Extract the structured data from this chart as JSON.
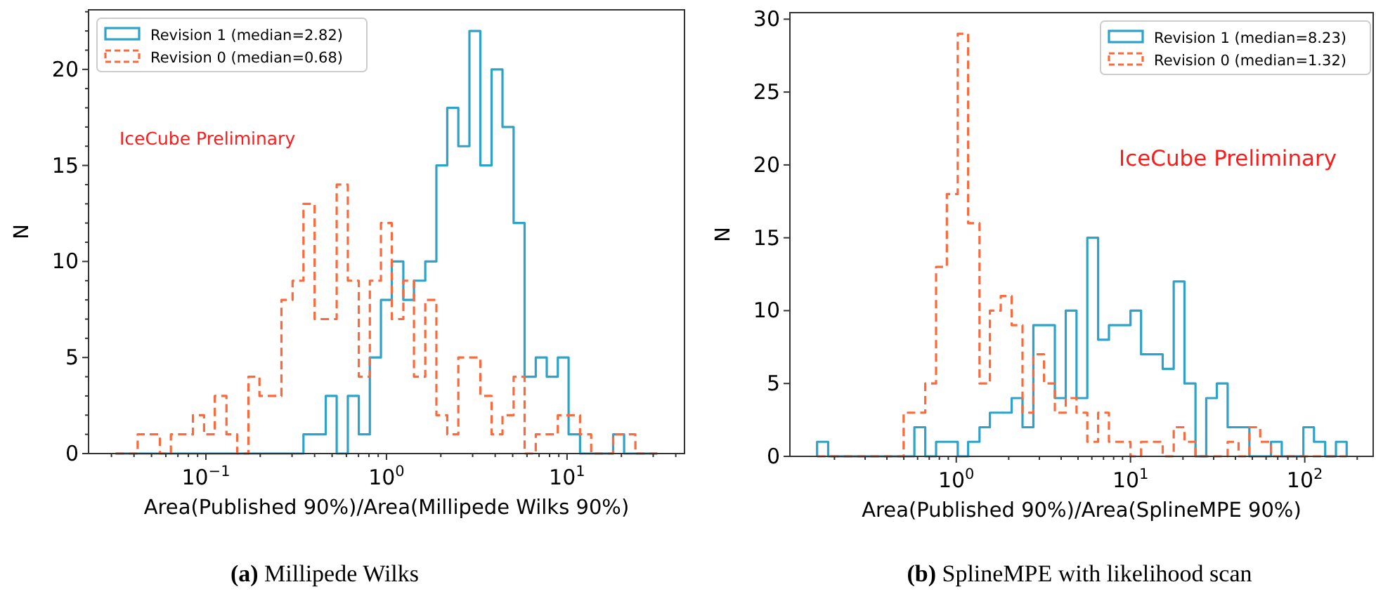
{
  "chart_data": [
    {
      "type": "histogram",
      "title": "(a) Millipede Wilks",
      "xlabel": "Area(Published 90%)/Area(Millipede Wilks 90%)",
      "ylabel": "N",
      "annotations": [
        "IceCube Preliminary"
      ],
      "log": "x",
      "legend": "top left",
      "grid": false,
      "bins": [
        0.0316,
        0.0364,
        0.0419,
        0.0483,
        0.0556,
        0.064,
        0.0737,
        0.0848,
        0.0977,
        0.112,
        0.13,
        0.149,
        0.172,
        0.198,
        0.228,
        0.262,
        0.302,
        0.347,
        0.4,
        0.461,
        0.53,
        0.611,
        0.703,
        0.809,
        0.932,
        1.07,
        1.24,
        1.42,
        1.64,
        1.89,
        2.17,
        2.5,
        2.88,
        3.31,
        3.82,
        4.39,
        5.06,
        5.82,
        6.71,
        7.72,
        8.89,
        10.2,
        11.8,
        13.6,
        15.6,
        18,
        20.7,
        23.9,
        27.5,
        31.6
      ],
      "series": [
        {
          "name": "Revision 1 (median=2.82)",
          "color": "#2ea2c8",
          "line_style": "solid",
          "values": [
            0,
            0,
            0,
            0,
            0,
            0,
            0,
            0,
            0,
            0,
            0,
            0,
            0,
            0,
            0,
            0,
            0,
            1,
            1,
            3,
            0,
            3,
            1,
            5,
            8,
            10,
            8,
            9,
            10,
            15,
            18,
            16,
            22,
            15,
            20,
            17,
            12,
            4,
            5,
            4,
            5,
            1,
            0,
            0,
            0,
            1,
            0,
            0,
            0
          ]
        },
        {
          "name": "Revision 0 (median=0.68)",
          "color": "#fa6a3c",
          "line_style": "dashed",
          "values": [
            0,
            0,
            1,
            1,
            0,
            1,
            1,
            2,
            1,
            3,
            1,
            0,
            4,
            3,
            3,
            8,
            9,
            13,
            7,
            7,
            14,
            9,
            4,
            9,
            12,
            7,
            9,
            4,
            8,
            2,
            1,
            5,
            5,
            3,
            1,
            2,
            4,
            0,
            1,
            1,
            2,
            2,
            1,
            0,
            0,
            1,
            1,
            0,
            0
          ]
        }
      ],
      "xlim": [
        0.0224,
        44.7
      ],
      "xticks": [
        {
          "value": 0.03,
          "label": null
        },
        {
          "value": 0.04,
          "label": null
        },
        {
          "value": 0.05,
          "label": null
        },
        {
          "value": 0.06,
          "label": null
        },
        {
          "value": 0.07,
          "label": null
        },
        {
          "value": 0.08,
          "label": null
        },
        {
          "value": 0.09,
          "label": null
        },
        {
          "value": 0.1,
          "label": "10$^{−1}$"
        },
        {
          "value": 0.2,
          "label": null
        },
        {
          "value": 0.3,
          "label": null
        },
        {
          "value": 0.4,
          "label": null
        },
        {
          "value": 0.5,
          "label": null
        },
        {
          "value": 0.6,
          "label": null
        },
        {
          "value": 0.7,
          "label": null
        },
        {
          "value": 0.8,
          "label": null
        },
        {
          "value": 0.9,
          "label": null
        },
        {
          "value": 1,
          "label": "10$^{0}$"
        },
        {
          "value": 2,
          "label": null
        },
        {
          "value": 3,
          "label": null
        },
        {
          "value": 4,
          "label": null
        },
        {
          "value": 5,
          "label": null
        },
        {
          "value": 6,
          "label": null
        },
        {
          "value": 7,
          "label": null
        },
        {
          "value": 8,
          "label": null
        },
        {
          "value": 9,
          "label": null
        },
        {
          "value": 10,
          "label": "10$^{1}$"
        },
        {
          "value": 20,
          "label": null
        },
        {
          "value": 30,
          "label": null
        },
        {
          "value": 40,
          "label": null
        }
      ],
      "ylim": [
        0,
        23.1
      ],
      "yticks": [
        0,
        {
          "value": 1,
          "label": null
        },
        {
          "value": 2,
          "label": null
        },
        {
          "value": 3,
          "label": null
        },
        {
          "value": 4,
          "label": null
        },
        5,
        {
          "value": 6,
          "label": null
        },
        {
          "value": 7,
          "label": null
        },
        {
          "value": 8,
          "label": null
        },
        {
          "value": 9,
          "label": null
        },
        10,
        {
          "value": 11,
          "label": null
        },
        {
          "value": 12,
          "label": null
        },
        {
          "value": 13,
          "label": null
        },
        {
          "value": 14,
          "label": null
        },
        15,
        {
          "value": 16,
          "label": null
        },
        {
          "value": 17,
          "label": null
        },
        {
          "value": 18,
          "label": null
        },
        {
          "value": 19,
          "label": null
        },
        20,
        {
          "value": 21,
          "label": null
        },
        {
          "value": 22,
          "label": null
        },
        {
          "value": 23,
          "label": null
        }
      ]
    },
    {
      "type": "histogram",
      "title": "(b) SplineMPE with likelihood scan",
      "xlabel": "Area(Published 90%)/Area(SplineMPE 90%)",
      "ylabel": "N",
      "annotations": [
        "IceCube Preliminary"
      ],
      "log": "x",
      "legend": "top right",
      "grid": false,
      "bins": [
        0.159,
        0.184,
        0.212,
        0.244,
        0.282,
        0.325,
        0.375,
        0.433,
        0.499,
        0.575,
        0.664,
        0.766,
        0.883,
        1.02,
        1.17,
        1.36,
        1.56,
        1.8,
        2.08,
        2.4,
        2.77,
        3.19,
        3.68,
        4.25,
        4.9,
        5.65,
        6.52,
        7.52,
        8.67,
        10,
        11.5,
        13.3,
        15.3,
        17.7,
        20.4,
        23.6,
        27.2,
        31.3,
        36.1,
        41.7,
        48.1,
        55.5,
        64,
        73.8,
        85.1,
        98.2,
        113,
        131,
        151,
        174
      ],
      "series": [
        {
          "name": "Revision 1 (median=8.23)",
          "color": "#2ea2c8",
          "line_style": "solid",
          "values": [
            1,
            0,
            0,
            0,
            0,
            0,
            0,
            0,
            0,
            2,
            0,
            1,
            1,
            0,
            1,
            2,
            3,
            3,
            4,
            2,
            9,
            9,
            4,
            10,
            4,
            15,
            8,
            9,
            9,
            10,
            7,
            7,
            6,
            12,
            5,
            0,
            4,
            5,
            2,
            2,
            0,
            0,
            1,
            0,
            0,
            2,
            1,
            0,
            1
          ]
        },
        {
          "name": "Revision 0 (median=1.32)",
          "color": "#fa6a3c",
          "line_style": "dashed",
          "values": [
            0,
            0,
            0,
            0,
            0,
            0,
            0,
            0,
            3,
            3,
            5,
            13,
            18,
            29,
            16,
            5,
            10,
            11,
            9,
            3,
            7,
            5,
            3,
            4,
            3,
            1,
            3,
            1,
            1,
            0,
            1,
            1,
            0,
            2,
            1,
            0,
            0,
            0,
            1,
            0,
            2,
            1,
            0,
            0,
            0,
            0,
            0,
            0,
            0
          ]
        }
      ],
      "xlim": [
        0.111,
        247
      ],
      "xticks": [
        {
          "value": 0.2,
          "label": null
        },
        {
          "value": 0.3,
          "label": null
        },
        {
          "value": 0.4,
          "label": null
        },
        {
          "value": 0.5,
          "label": null
        },
        {
          "value": 0.6,
          "label": null
        },
        {
          "value": 0.7,
          "label": null
        },
        {
          "value": 0.8,
          "label": null
        },
        {
          "value": 0.9,
          "label": null
        },
        {
          "value": 1,
          "label": "10$^{0}$"
        },
        {
          "value": 2,
          "label": null
        },
        {
          "value": 3,
          "label": null
        },
        {
          "value": 4,
          "label": null
        },
        {
          "value": 5,
          "label": null
        },
        {
          "value": 6,
          "label": null
        },
        {
          "value": 7,
          "label": null
        },
        {
          "value": 8,
          "label": null
        },
        {
          "value": 9,
          "label": null
        },
        {
          "value": 10,
          "label": "10$^{1}$"
        },
        {
          "value": 20,
          "label": null
        },
        {
          "value": 30,
          "label": null
        },
        {
          "value": 40,
          "label": null
        },
        {
          "value": 50,
          "label": null
        },
        {
          "value": 60,
          "label": null
        },
        {
          "value": 70,
          "label": null
        },
        {
          "value": 80,
          "label": null
        },
        {
          "value": 90,
          "label": null
        },
        {
          "value": 100,
          "label": "10$^{2}$"
        },
        {
          "value": 200,
          "label": null
        }
      ],
      "ylim": [
        0,
        30.45
      ],
      "yticks": [
        0,
        5,
        10,
        15,
        20,
        25,
        30
      ]
    }
  ]
}
